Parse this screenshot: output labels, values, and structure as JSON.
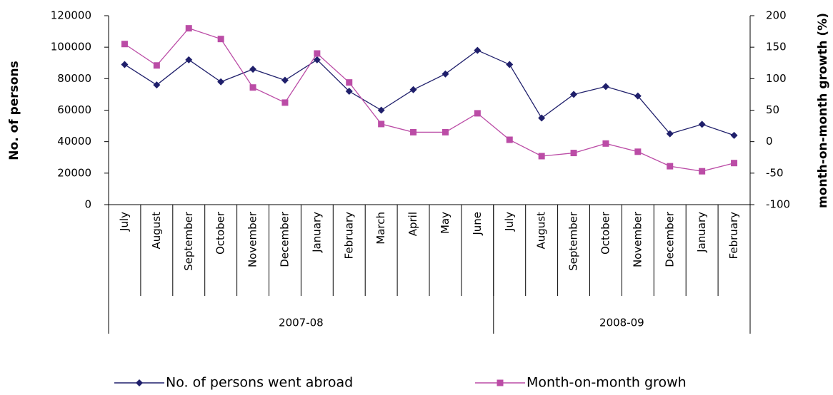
{
  "chart_data": {
    "type": "line",
    "y_label": "No. of persons",
    "y2_label": "month-on-month growth (%)",
    "categories": [
      "July",
      "August",
      "September",
      "October",
      "November",
      "December",
      "January",
      "February",
      "March",
      "April",
      "May",
      "June",
      "July",
      "August",
      "September",
      "October",
      "November",
      "December",
      "January",
      "February"
    ],
    "groups": [
      {
        "label": "2007-08",
        "span": 12
      },
      {
        "label": "2008-09",
        "span": 8
      }
    ],
    "series": [
      {
        "name": "No. of persons went abroad",
        "color": "#1f1f6b",
        "marker": "diamond",
        "values": [
          89000,
          76000,
          92000,
          78000,
          86000,
          79000,
          92000,
          72000,
          60000,
          73000,
          83000,
          98000,
          89000,
          55000,
          70000,
          75000,
          69000,
          45000,
          51000,
          44000
        ]
      },
      {
        "name": "Month-on-month growh",
        "color": "#bb4ca6",
        "marker": "square",
        "axis": "y2",
        "values": [
          155,
          121,
          180,
          163,
          86,
          62,
          140,
          94,
          28,
          15,
          15,
          45,
          3,
          -23,
          -18,
          -3,
          -16,
          -39,
          -47,
          -34
        ]
      }
    ],
    "ylim": [
      0,
      120000
    ],
    "yticks": [
      0,
      20000,
      40000,
      60000,
      80000,
      100000,
      120000
    ],
    "y2lim": [
      -100,
      200
    ],
    "y2ticks": [
      -100,
      -50,
      0,
      50,
      100,
      150,
      200
    ],
    "legend": "bottom"
  }
}
